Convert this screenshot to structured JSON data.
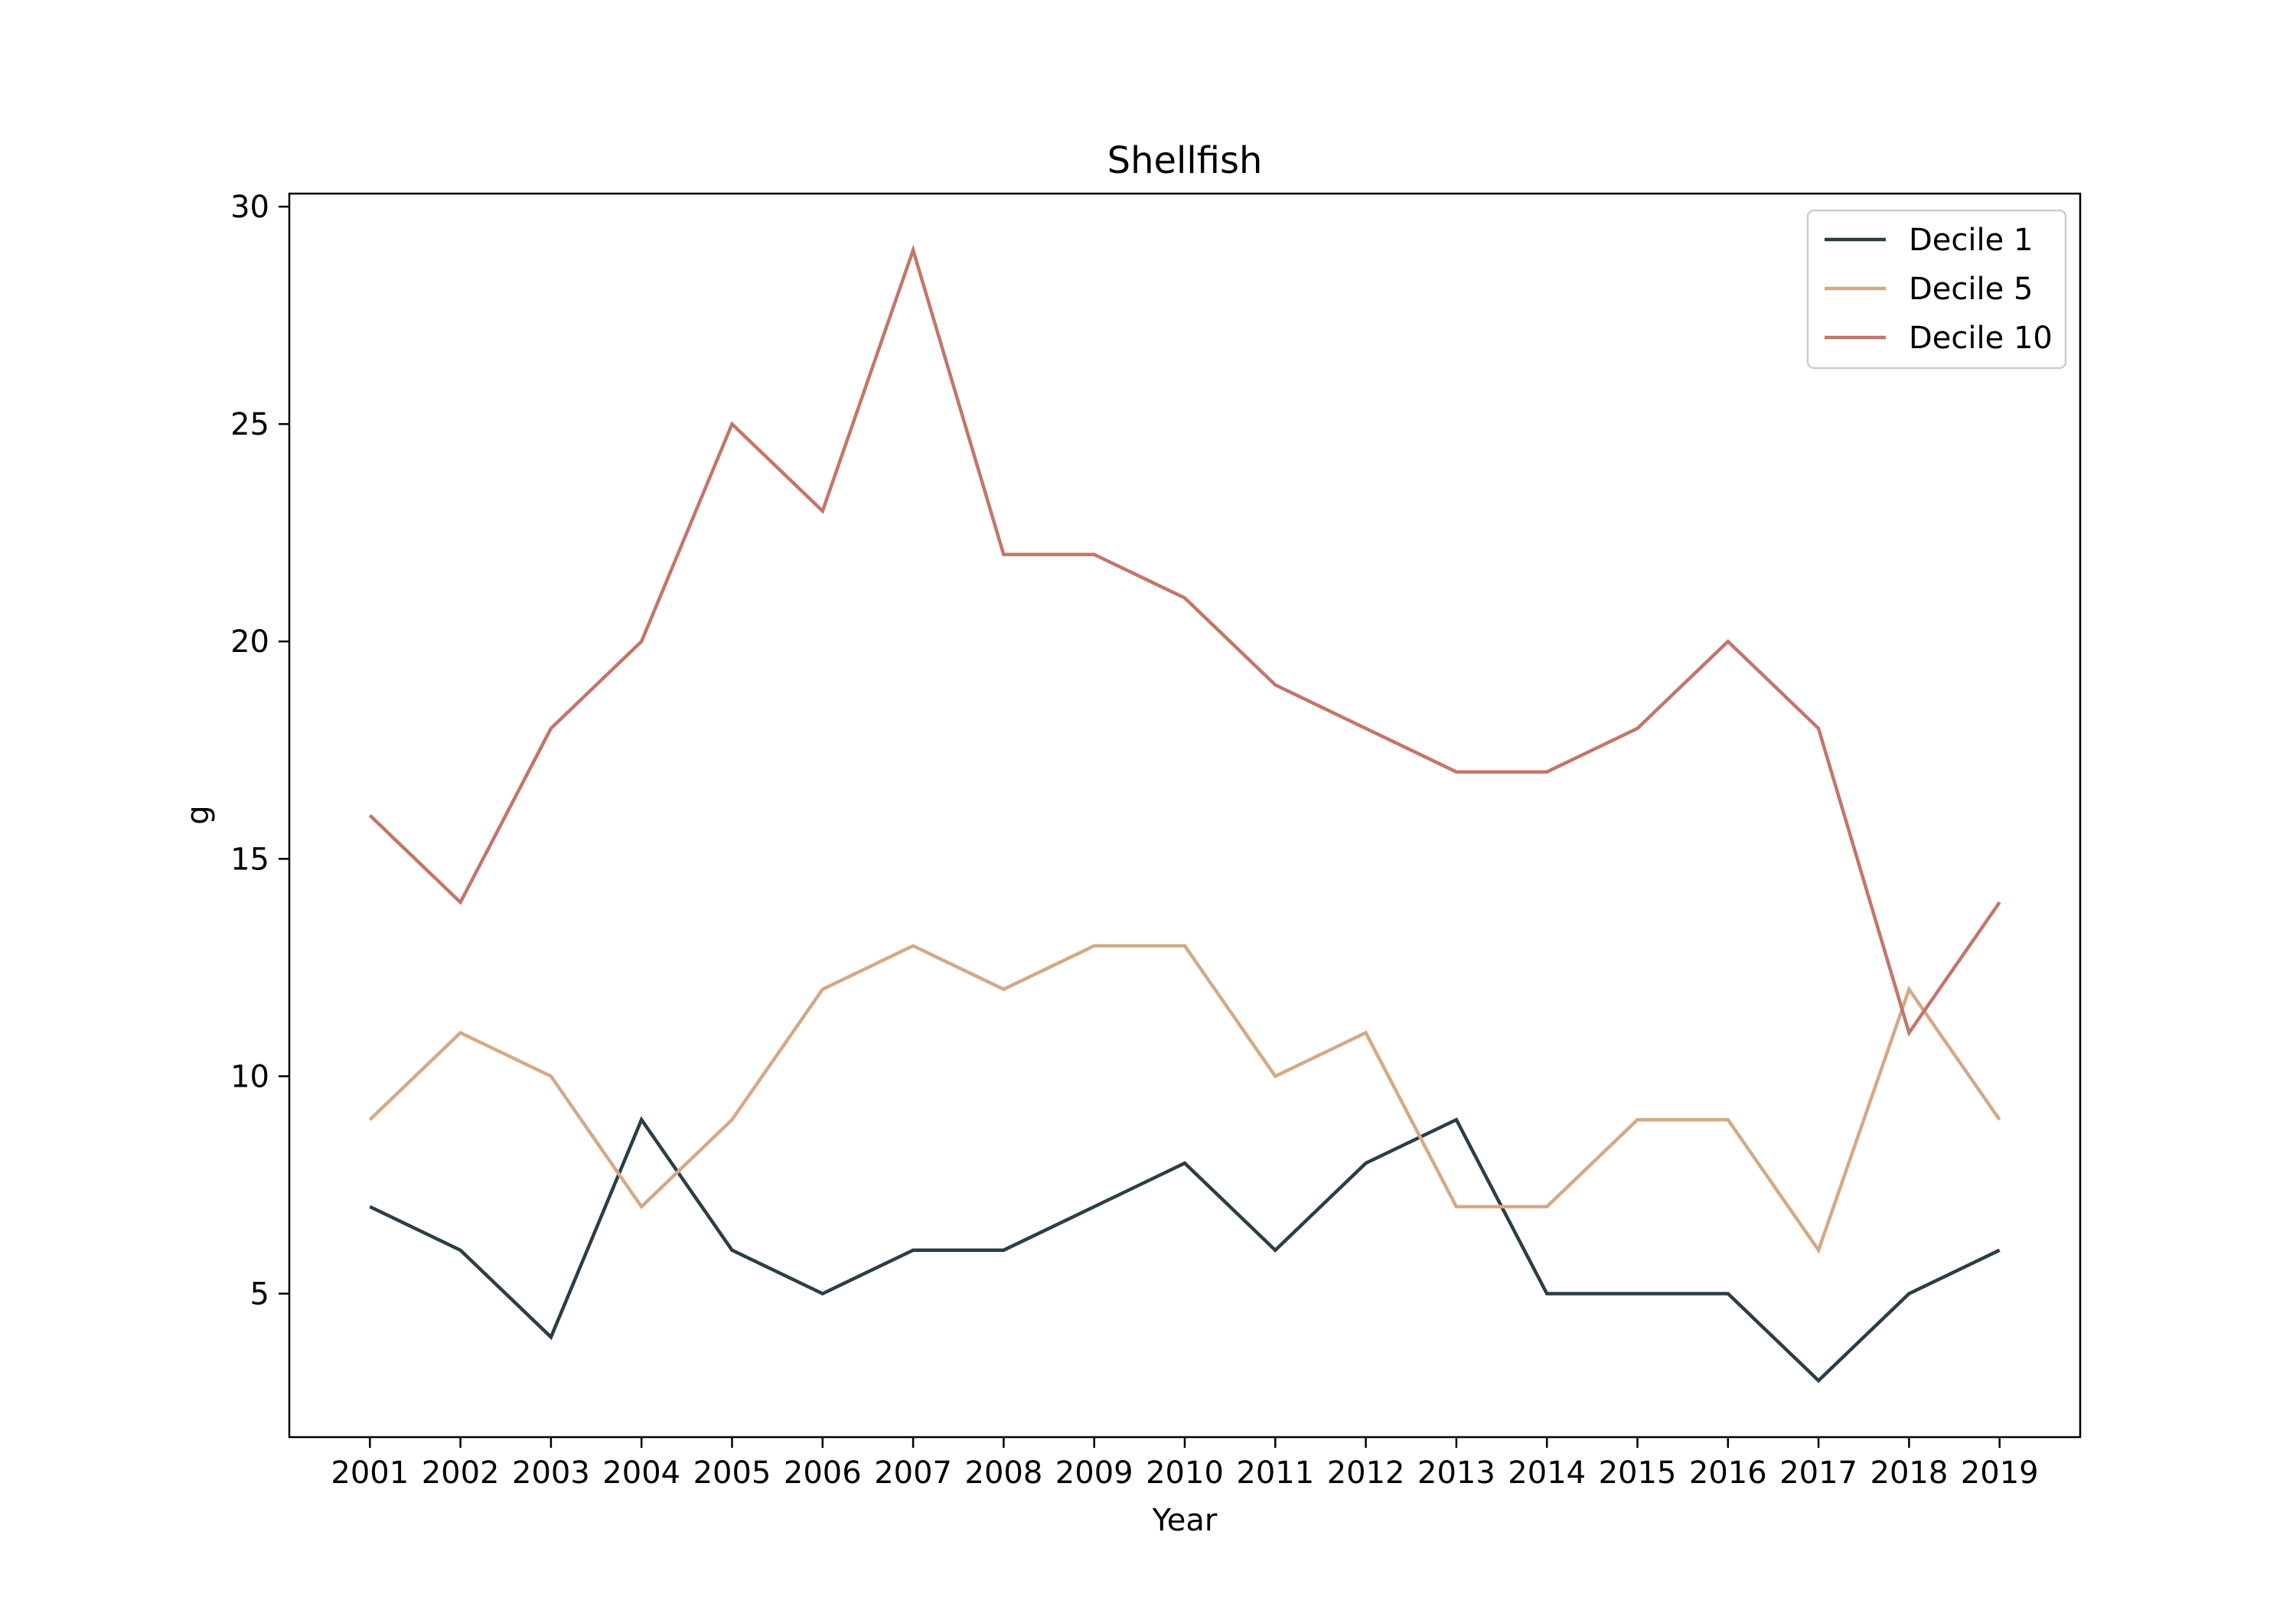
{
  "chart_data": {
    "type": "line",
    "title": "Shellfish",
    "xlabel": "Year",
    "ylabel": "g",
    "x": [
      "2001",
      "2002",
      "2003",
      "2004",
      "2005",
      "2006",
      "2007",
      "2008",
      "2009",
      "2010",
      "2011",
      "2012",
      "2013",
      "2014",
      "2015",
      "2016",
      "2017",
      "2018",
      "2019"
    ],
    "yticks": [
      5,
      10,
      15,
      20,
      25,
      30
    ],
    "ylim": [
      1.7,
      30.3
    ],
    "grid": false,
    "legend_position": "top-right",
    "series": [
      {
        "name": "Decile 1",
        "color": "#2c3e45",
        "values": [
          7,
          6,
          4,
          9,
          6,
          5,
          6,
          6,
          7,
          8,
          6,
          8,
          9,
          5,
          5,
          5,
          3,
          5,
          6
        ]
      },
      {
        "name": "Decile 5",
        "color": "#d4a986",
        "values": [
          9,
          11,
          10,
          7,
          9,
          12,
          13,
          12,
          13,
          13,
          10,
          11,
          7,
          7,
          9,
          9,
          6,
          12,
          9
        ]
      },
      {
        "name": "Decile 10",
        "color": "#c4756a",
        "values": [
          16,
          14,
          18,
          20,
          25,
          23,
          29,
          22,
          22,
          21,
          19,
          18,
          17,
          17,
          18,
          20,
          18,
          11,
          14
        ]
      }
    ]
  }
}
